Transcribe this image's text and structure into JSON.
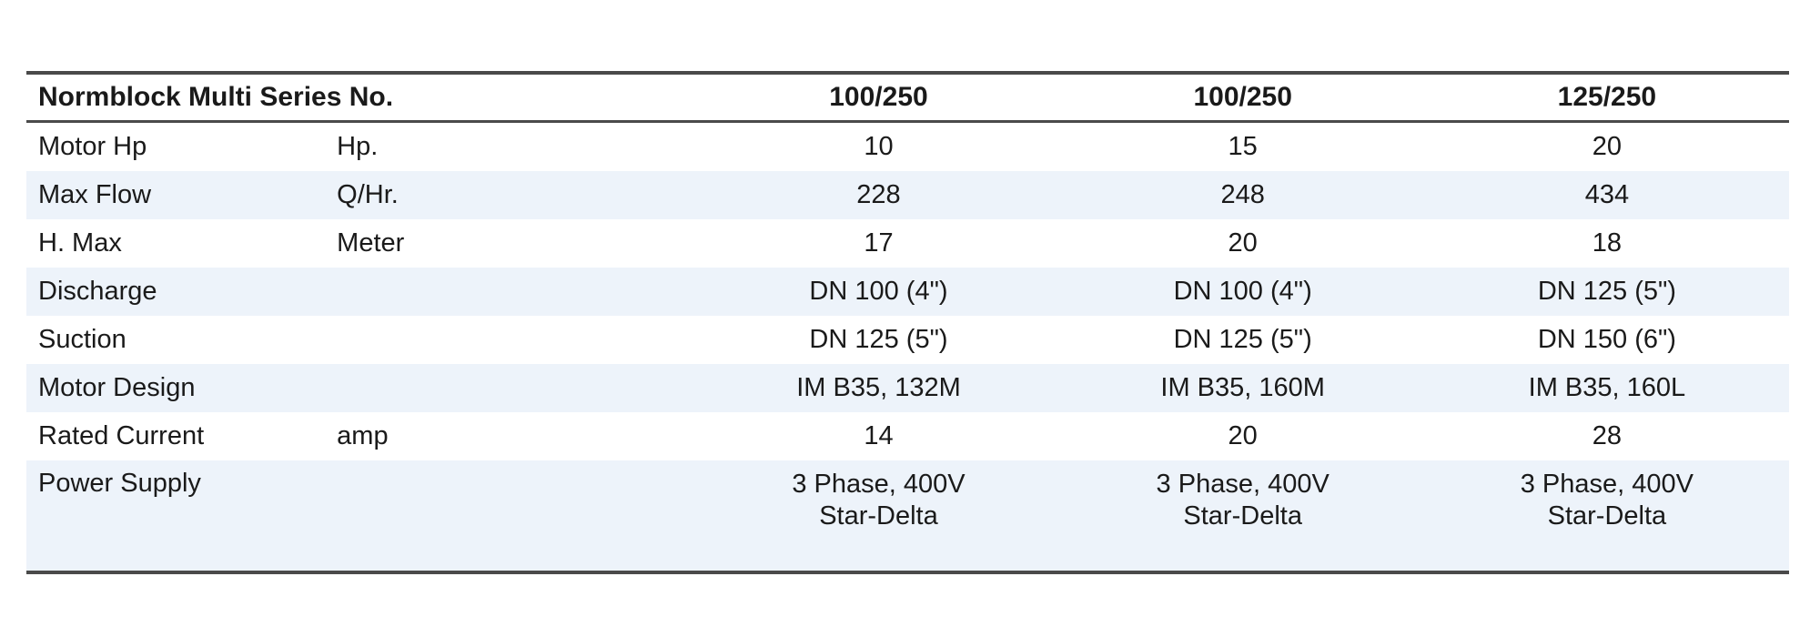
{
  "colors": {
    "stripe": "#EDF3FA",
    "rule": "#4A4A4A",
    "text": "#1A1A1A",
    "background": "#FFFFFF"
  },
  "table": {
    "title_header": "Normblock Multi Series No.",
    "series_headers": [
      "100/250",
      "100/250",
      "125/250"
    ],
    "rows": [
      {
        "label": "Motor Hp",
        "unit": "Hp.",
        "values": [
          "10",
          "15",
          "20"
        ]
      },
      {
        "label": "Max Flow",
        "unit": "Q/Hr.",
        "values": [
          "228",
          "248",
          "434"
        ]
      },
      {
        "label": "H. Max",
        "unit": "Meter",
        "values": [
          "17",
          "20",
          "18"
        ]
      },
      {
        "label": "Discharge",
        "unit": "",
        "values": [
          "DN 100 (4\")",
          "DN 100 (4\")",
          "DN 125 (5\")"
        ]
      },
      {
        "label": "Suction",
        "unit": "",
        "values": [
          "DN 125 (5\")",
          "DN 125 (5\")",
          "DN 150 (6\")"
        ]
      },
      {
        "label": "Motor Design",
        "unit": "",
        "values": [
          "IM B35, 132M",
          "IM B35, 160M",
          "IM B35, 160L"
        ]
      },
      {
        "label": "Rated Current",
        "unit": "amp",
        "values": [
          "14",
          "20",
          "28"
        ]
      },
      {
        "label": "Power Supply",
        "unit": "",
        "values": [
          "3 Phase, 400V\nStar-Delta",
          "3 Phase, 400V\nStar-Delta",
          "3 Phase, 400V\nStar-Delta"
        ]
      }
    ]
  }
}
